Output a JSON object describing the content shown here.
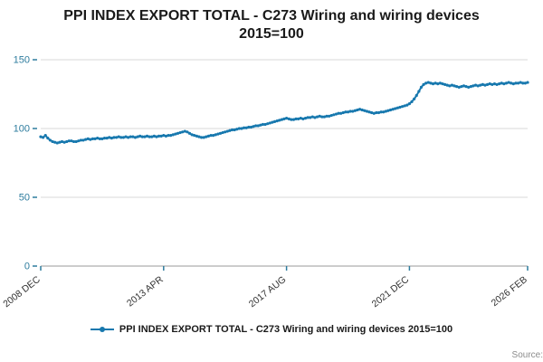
{
  "title": "PPI INDEX EXPORT TOTAL - C273 Wiring and wiring devices 2015=100",
  "legend": {
    "label": "PPI INDEX EXPORT TOTAL - C273 Wiring and wiring devices 2015=100"
  },
  "source": {
    "label": "Source:"
  },
  "colors": {
    "line": "#1778ae",
    "tick_label": "#2e7c9e",
    "x_label": "#333333",
    "grid": "#d9d9d9",
    "axis": "#9a9a9a"
  },
  "chart_data": {
    "type": "line",
    "title": "PPI INDEX EXPORT TOTAL - C273 Wiring and wiring devices 2015=100",
    "xlabel": "",
    "ylabel": "",
    "ylim": [
      0,
      150
    ],
    "y_ticks": [
      0,
      50,
      100,
      150
    ],
    "grid": "horizontal",
    "legend_position": "bottom",
    "x_ticks": [
      {
        "index": 0,
        "label": "2008 DEC"
      },
      {
        "index": 52,
        "label": "2013 APR"
      },
      {
        "index": 104,
        "label": "2017 AUG"
      },
      {
        "index": 156,
        "label": "2021 DEC"
      },
      {
        "index": 206,
        "label": "2026 FEB"
      }
    ],
    "x_unit": "month",
    "series": [
      {
        "name": "PPI INDEX EXPORT TOTAL - C273 Wiring and wiring devices 2015=100",
        "values": [
          94,
          93.5,
          95,
          93,
          91.5,
          90.5,
          90,
          89.5,
          90,
          90.5,
          90,
          90.5,
          91,
          91,
          90.5,
          90.5,
          91,
          91.5,
          91.5,
          92,
          92.5,
          92,
          92.5,
          92.5,
          93,
          92.5,
          92.5,
          93,
          93,
          93.5,
          93,
          93.5,
          93.5,
          94,
          93.5,
          93.5,
          94,
          93.5,
          94,
          94,
          93.5,
          94,
          94.5,
          94,
          94,
          94.5,
          94,
          94,
          94.5,
          94,
          94.5,
          94.5,
          95,
          94.5,
          95,
          95,
          95.5,
          96,
          96.5,
          97,
          97.5,
          98,
          97.5,
          96.5,
          95.5,
          95,
          94.5,
          94,
          93.5,
          93.5,
          94,
          94.5,
          95,
          95,
          95.5,
          96,
          96.5,
          97,
          97.5,
          98,
          98.5,
          99,
          99,
          99.5,
          100,
          100,
          100.5,
          100.5,
          101,
          101,
          101.5,
          102,
          102,
          102.5,
          103,
          103,
          103.5,
          104,
          104.5,
          105,
          105.5,
          106,
          106.5,
          107,
          107.5,
          107,
          106.5,
          106.5,
          107,
          107,
          107.5,
          107,
          107.5,
          108,
          108,
          108.5,
          108,
          108.5,
          109,
          108.5,
          108.5,
          109,
          109,
          109.5,
          110,
          110.5,
          111,
          111,
          111.5,
          112,
          112,
          112.5,
          112.5,
          113,
          113.5,
          114,
          113.5,
          113,
          112.5,
          112,
          111.5,
          111,
          111.5,
          111.5,
          112,
          112,
          112.5,
          113,
          113.5,
          114,
          114.5,
          115,
          115.5,
          116,
          116.5,
          117,
          118,
          119.5,
          121.5,
          124,
          127,
          130,
          132,
          133,
          133.5,
          133,
          132.5,
          133,
          132.5,
          133,
          132.5,
          132,
          131.5,
          131,
          131.5,
          131,
          130.5,
          130,
          130.5,
          131,
          130.5,
          130,
          130.5,
          131,
          131.5,
          131,
          131.5,
          132,
          131.5,
          132,
          132.5,
          132,
          132.5,
          132,
          132.5,
          133,
          132.5,
          133,
          133.5,
          133,
          132.5,
          133,
          133,
          133.5,
          133,
          133,
          133.5
        ]
      }
    ]
  }
}
